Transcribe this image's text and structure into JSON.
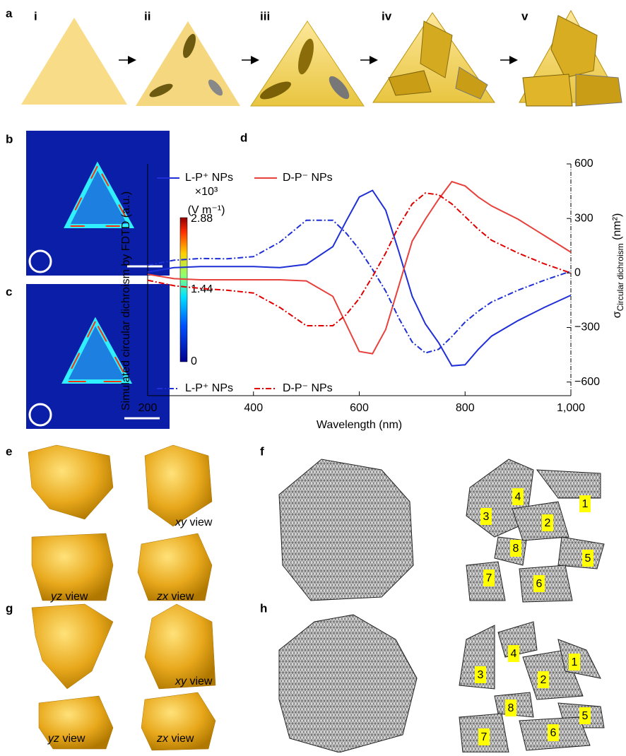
{
  "panels": {
    "a": {
      "label": "a",
      "steps": [
        "i",
        "ii",
        "iii",
        "iv",
        "v"
      ]
    },
    "b": {
      "label": "b"
    },
    "c": {
      "label": "c"
    },
    "colorbar": {
      "unit_line1": "×10³",
      "unit_line2": "(V m⁻¹)",
      "ticks": [
        "2.88",
        "1.44",
        "0"
      ]
    },
    "d": {
      "label": "d"
    },
    "e": {
      "label": "e",
      "views": [
        "xy view",
        "yz view",
        "zx view"
      ]
    },
    "f": {
      "label": "f",
      "parts": [
        "1",
        "2",
        "3",
        "4",
        "5",
        "6",
        "7",
        "8"
      ]
    },
    "g": {
      "label": "g",
      "views": [
        "xy view",
        "yz view",
        "zx view"
      ]
    },
    "h": {
      "label": "h",
      "parts": [
        "1",
        "2",
        "3",
        "4",
        "5",
        "6",
        "7",
        "8"
      ]
    }
  },
  "chart_data": {
    "type": "line",
    "xlabel": "Wavelength (nm)",
    "ylabel": "Simulated circular dichroism by FDTD (a.u.)",
    "y2label": {
      "symbol": "σ",
      "subscript": "Circular dichroism",
      "unit": "(nm²)"
    },
    "x": [
      200,
      250,
      300,
      350,
      400,
      450,
      500,
      550,
      575,
      600,
      625,
      650,
      675,
      700,
      725,
      750,
      775,
      800,
      825,
      850,
      900,
      950,
      1000
    ],
    "xlim": [
      200,
      1000
    ],
    "xticks": [
      200,
      400,
      600,
      800,
      {
        "value": 1000,
        "label": "1,000"
      }
    ],
    "ylim": [
      -1.1,
      1
    ],
    "y2lim": [
      -675,
      600
    ],
    "y2ticks": [
      600,
      300,
      0,
      {
        "value": -300,
        "label": "−300"
      },
      {
        "value": -600,
        "label": "−600"
      }
    ],
    "series": [
      {
        "name": "L-P⁺ NPs",
        "color": "#1f2fd6",
        "dash": "solid",
        "values": [
          0.02,
          0.06,
          0.07,
          0.07,
          0.07,
          0.06,
          0.09,
          0.25,
          0.48,
          0.7,
          0.76,
          0.58,
          0.2,
          -0.2,
          -0.45,
          -0.62,
          -0.83,
          -0.82,
          -0.68,
          -0.56,
          -0.42,
          -0.3,
          -0.19
        ]
      },
      {
        "name": "D-P⁻ NPs",
        "color": "#e8413c",
        "dash": "solid",
        "values": [
          0,
          -0.04,
          -0.05,
          -0.05,
          -0.05,
          -0.05,
          -0.06,
          -0.2,
          -0.45,
          -0.7,
          -0.72,
          -0.5,
          -0.1,
          0.3,
          0.5,
          0.68,
          0.84,
          0.8,
          0.7,
          0.62,
          0.5,
          0.35,
          0.2
        ]
      },
      {
        "name": "L-P⁺ NPs",
        "color": "#1f2fd6",
        "dash": "dashdot",
        "axis": "y2",
        "values": [
          43,
          70,
          80,
          78,
          90,
          170,
          290,
          290,
          220,
          130,
          20,
          -100,
          -250,
          -380,
          -440,
          -420,
          -350,
          -270,
          -210,
          -160,
          -95,
          -40,
          10
        ]
      },
      {
        "name": "D-P⁻ NPs",
        "color": "#e00000",
        "dash": "dashdot",
        "axis": "y2",
        "values": [
          -40,
          -70,
          -85,
          -95,
          -110,
          -190,
          -290,
          -290,
          -230,
          -140,
          -20,
          110,
          260,
          380,
          440,
          430,
          380,
          310,
          240,
          180,
          110,
          50,
          0
        ]
      }
    ]
  }
}
